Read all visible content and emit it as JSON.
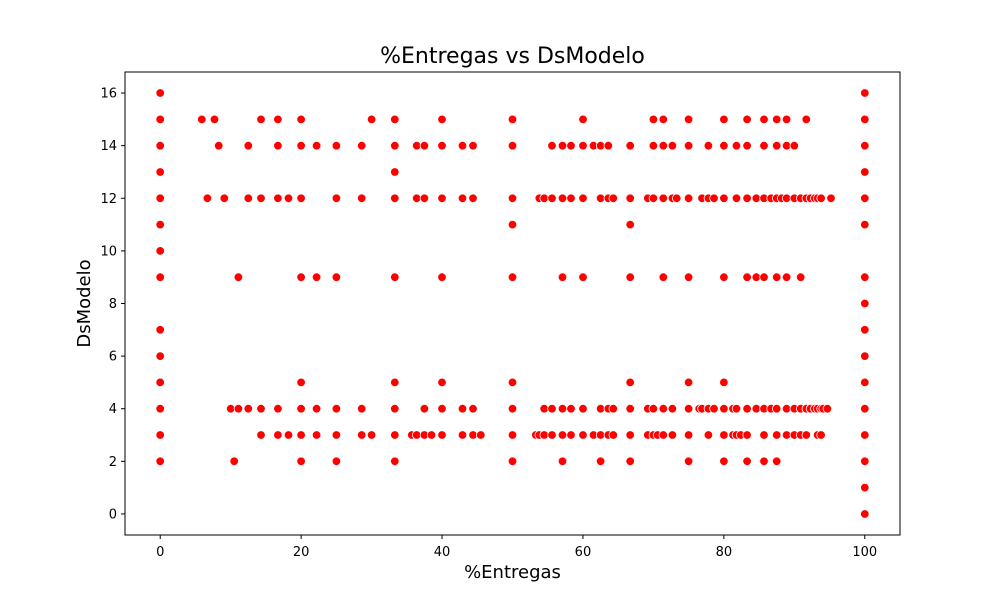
{
  "chart_data": {
    "type": "scatter",
    "title": "%Entregas vs DsModelo",
    "xlabel": "%Entregas",
    "ylabel": "DsModelo",
    "xlim": [
      -5,
      105
    ],
    "ylim": [
      -0.8,
      16.8
    ],
    "xticks": [
      0,
      20,
      40,
      60,
      80,
      100
    ],
    "yticks": [
      0,
      2,
      4,
      6,
      8,
      10,
      12,
      14,
      16
    ],
    "grid": false,
    "legend": "none",
    "marker_color": "#ff0000",
    "marker_edge": "#ffffff",
    "series": [
      {
        "points": [
          [
            0,
            16
          ],
          [
            0,
            15
          ],
          [
            0,
            14
          ],
          [
            0,
            13
          ],
          [
            0,
            12
          ],
          [
            0,
            11
          ],
          [
            0,
            10
          ],
          [
            0,
            9
          ],
          [
            0,
            7
          ],
          [
            0,
            6
          ],
          [
            0,
            5
          ],
          [
            0,
            4
          ],
          [
            0,
            3
          ],
          [
            0,
            2
          ],
          [
            100,
            16
          ],
          [
            100,
            15
          ],
          [
            100,
            14
          ],
          [
            100,
            13
          ],
          [
            100,
            12
          ],
          [
            100,
            11
          ],
          [
            100,
            9
          ],
          [
            100,
            8
          ],
          [
            100,
            7
          ],
          [
            100,
            6
          ],
          [
            100,
            5
          ],
          [
            100,
            4
          ],
          [
            100,
            3
          ],
          [
            100,
            2
          ],
          [
            100,
            1
          ],
          [
            100,
            0
          ],
          [
            5.9,
            15
          ],
          [
            7.7,
            15
          ],
          [
            14.3,
            15
          ],
          [
            16.7,
            15
          ],
          [
            20,
            15
          ],
          [
            30,
            15
          ],
          [
            33.3,
            15
          ],
          [
            40,
            15
          ],
          [
            50,
            15
          ],
          [
            60,
            15
          ],
          [
            70,
            15
          ],
          [
            71.4,
            15
          ],
          [
            75,
            15
          ],
          [
            80,
            15
          ],
          [
            83.3,
            15
          ],
          [
            85.7,
            15
          ],
          [
            87.5,
            15
          ],
          [
            88.9,
            15
          ],
          [
            91.7,
            15
          ],
          [
            8.3,
            14
          ],
          [
            12.5,
            14
          ],
          [
            16.7,
            14
          ],
          [
            20,
            14
          ],
          [
            22.2,
            14
          ],
          [
            25,
            14
          ],
          [
            28.6,
            14
          ],
          [
            33.3,
            14
          ],
          [
            36.4,
            14
          ],
          [
            37.5,
            14
          ],
          [
            40,
            14
          ],
          [
            42.9,
            14
          ],
          [
            44.4,
            14
          ],
          [
            50,
            14
          ],
          [
            55.6,
            14
          ],
          [
            57.1,
            14
          ],
          [
            58.3,
            14
          ],
          [
            60,
            14
          ],
          [
            61.5,
            14
          ],
          [
            62.5,
            14
          ],
          [
            63.6,
            14
          ],
          [
            66.7,
            14
          ],
          [
            70,
            14
          ],
          [
            71.4,
            14
          ],
          [
            72.7,
            14
          ],
          [
            75,
            14
          ],
          [
            77.8,
            14
          ],
          [
            80,
            14
          ],
          [
            81.8,
            14
          ],
          [
            83.3,
            14
          ],
          [
            85.7,
            14
          ],
          [
            87.5,
            14
          ],
          [
            88.9,
            14
          ],
          [
            90,
            14
          ],
          [
            33.3,
            13
          ],
          [
            6.7,
            12
          ],
          [
            9.1,
            12
          ],
          [
            12.5,
            12
          ],
          [
            14.3,
            12
          ],
          [
            16.7,
            12
          ],
          [
            18.2,
            12
          ],
          [
            20,
            12
          ],
          [
            25,
            12
          ],
          [
            28.6,
            12
          ],
          [
            33.3,
            12
          ],
          [
            36.4,
            12
          ],
          [
            37.5,
            12
          ],
          [
            40,
            12
          ],
          [
            42.9,
            12
          ],
          [
            44.4,
            12
          ],
          [
            50,
            12
          ],
          [
            53.8,
            12
          ],
          [
            54.5,
            12
          ],
          [
            55.6,
            12
          ],
          [
            57.1,
            12
          ],
          [
            58.3,
            12
          ],
          [
            60,
            12
          ],
          [
            62.5,
            12
          ],
          [
            63.6,
            12
          ],
          [
            64.3,
            12
          ],
          [
            66.7,
            12
          ],
          [
            69.2,
            12
          ],
          [
            70,
            12
          ],
          [
            71.4,
            12
          ],
          [
            72.7,
            12
          ],
          [
            73.3,
            12
          ],
          [
            75,
            12
          ],
          [
            76.9,
            12
          ],
          [
            77.8,
            12
          ],
          [
            78.6,
            12
          ],
          [
            80,
            12
          ],
          [
            81.8,
            12
          ],
          [
            83.3,
            12
          ],
          [
            84.6,
            12
          ],
          [
            85.7,
            12
          ],
          [
            86.7,
            12
          ],
          [
            87.5,
            12
          ],
          [
            88.2,
            12
          ],
          [
            88.9,
            12
          ],
          [
            90,
            12
          ],
          [
            90.9,
            12
          ],
          [
            91.7,
            12
          ],
          [
            92.3,
            12
          ],
          [
            92.9,
            12
          ],
          [
            93.3,
            12
          ],
          [
            93.8,
            12
          ],
          [
            95.2,
            12
          ],
          [
            50,
            11
          ],
          [
            66.7,
            11
          ],
          [
            11.1,
            9
          ],
          [
            20,
            9
          ],
          [
            22.2,
            9
          ],
          [
            25,
            9
          ],
          [
            33.3,
            9
          ],
          [
            40,
            9
          ],
          [
            50,
            9
          ],
          [
            57.1,
            9
          ],
          [
            60,
            9
          ],
          [
            66.7,
            9
          ],
          [
            71.4,
            9
          ],
          [
            75,
            9
          ],
          [
            80,
            9
          ],
          [
            83.3,
            9
          ],
          [
            84.6,
            9
          ],
          [
            85.7,
            9
          ],
          [
            87.5,
            9
          ],
          [
            88.9,
            9
          ],
          [
            90.9,
            9
          ],
          [
            20,
            5
          ],
          [
            33.3,
            5
          ],
          [
            40,
            5
          ],
          [
            50,
            5
          ],
          [
            66.7,
            5
          ],
          [
            75,
            5
          ],
          [
            80,
            5
          ],
          [
            10,
            4
          ],
          [
            11.1,
            4
          ],
          [
            12.5,
            4
          ],
          [
            14.3,
            4
          ],
          [
            16.7,
            4
          ],
          [
            20,
            4
          ],
          [
            22.2,
            4
          ],
          [
            25,
            4
          ],
          [
            28.6,
            4
          ],
          [
            33.3,
            4
          ],
          [
            37.5,
            4
          ],
          [
            40,
            4
          ],
          [
            42.9,
            4
          ],
          [
            44.4,
            4
          ],
          [
            50,
            4
          ],
          [
            54.5,
            4
          ],
          [
            55.6,
            4
          ],
          [
            57.1,
            4
          ],
          [
            58.3,
            4
          ],
          [
            60,
            4
          ],
          [
            62.5,
            4
          ],
          [
            63.6,
            4
          ],
          [
            64.3,
            4
          ],
          [
            66.7,
            4
          ],
          [
            69.2,
            4
          ],
          [
            70,
            4
          ],
          [
            71.4,
            4
          ],
          [
            72.7,
            4
          ],
          [
            75,
            4
          ],
          [
            76.5,
            4
          ],
          [
            76.9,
            4
          ],
          [
            77.8,
            4
          ],
          [
            78.6,
            4
          ],
          [
            80,
            4
          ],
          [
            81.3,
            4
          ],
          [
            81.8,
            4
          ],
          [
            83.3,
            4
          ],
          [
            84.6,
            4
          ],
          [
            85.7,
            4
          ],
          [
            86.7,
            4
          ],
          [
            87.5,
            4
          ],
          [
            88.9,
            4
          ],
          [
            90,
            4
          ],
          [
            90.9,
            4
          ],
          [
            91.7,
            4
          ],
          [
            92.3,
            4
          ],
          [
            92.9,
            4
          ],
          [
            93.3,
            4
          ],
          [
            93.8,
            4
          ],
          [
            94.1,
            4
          ],
          [
            94.7,
            4
          ],
          [
            14.3,
            3
          ],
          [
            16.7,
            3
          ],
          [
            18.2,
            3
          ],
          [
            20,
            3
          ],
          [
            22.2,
            3
          ],
          [
            25,
            3
          ],
          [
            28.6,
            3
          ],
          [
            30,
            3
          ],
          [
            33.3,
            3
          ],
          [
            35.7,
            3
          ],
          [
            36.4,
            3
          ],
          [
            37.5,
            3
          ],
          [
            38.5,
            3
          ],
          [
            40,
            3
          ],
          [
            42.9,
            3
          ],
          [
            44.4,
            3
          ],
          [
            45.5,
            3
          ],
          [
            50,
            3
          ],
          [
            53.3,
            3
          ],
          [
            53.8,
            3
          ],
          [
            54.5,
            3
          ],
          [
            55.6,
            3
          ],
          [
            57.1,
            3
          ],
          [
            58.3,
            3
          ],
          [
            60,
            3
          ],
          [
            61.5,
            3
          ],
          [
            62.5,
            3
          ],
          [
            63.6,
            3
          ],
          [
            64.3,
            3
          ],
          [
            66.7,
            3
          ],
          [
            69.2,
            3
          ],
          [
            70,
            3
          ],
          [
            70.6,
            3
          ],
          [
            71.4,
            3
          ],
          [
            72.7,
            3
          ],
          [
            75,
            3
          ],
          [
            77.8,
            3
          ],
          [
            80,
            3
          ],
          [
            81.3,
            3
          ],
          [
            81.8,
            3
          ],
          [
            82.4,
            3
          ],
          [
            83.3,
            3
          ],
          [
            85.7,
            3
          ],
          [
            87.5,
            3
          ],
          [
            88.9,
            3
          ],
          [
            90,
            3
          ],
          [
            90.9,
            3
          ],
          [
            91.7,
            3
          ],
          [
            93.3,
            3
          ],
          [
            93.8,
            3
          ],
          [
            10.5,
            2
          ],
          [
            20,
            2
          ],
          [
            25,
            2
          ],
          [
            33.3,
            2
          ],
          [
            50,
            2
          ],
          [
            57.1,
            2
          ],
          [
            62.5,
            2
          ],
          [
            66.7,
            2
          ],
          [
            75,
            2
          ],
          [
            80,
            2
          ],
          [
            83.3,
            2
          ],
          [
            85.7,
            2
          ],
          [
            87.5,
            2
          ]
        ]
      }
    ]
  }
}
